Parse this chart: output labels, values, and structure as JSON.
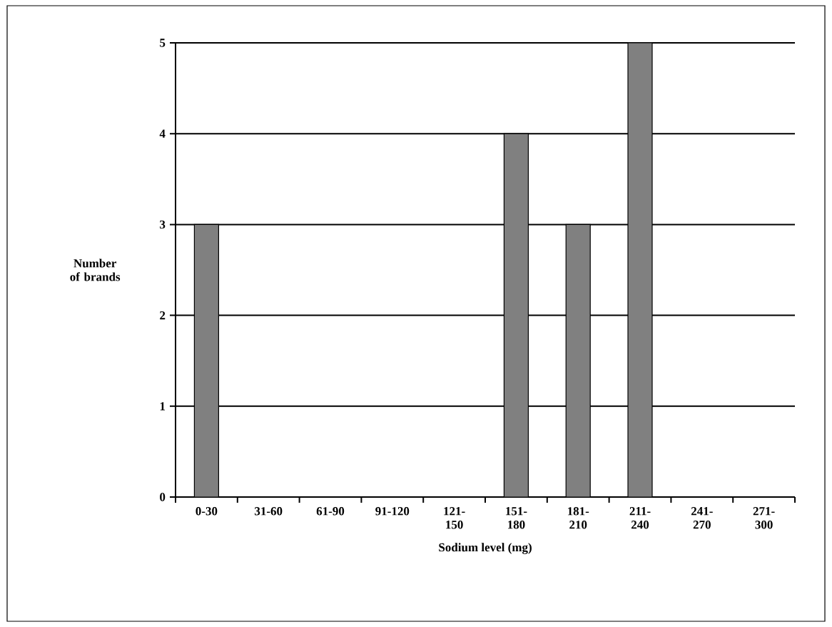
{
  "chart_data": {
    "type": "bar",
    "xlabel": "Sodium level (mg)",
    "ylabel": "Number of brands",
    "categories": [
      "0-30",
      "31-60",
      "61-90",
      "91-120",
      "121-150",
      "151-180",
      "181-210",
      "211-240",
      "241-270",
      "271-300"
    ],
    "values": [
      3,
      0,
      0,
      0,
      0,
      4,
      3,
      5,
      0,
      0
    ],
    "color": "#808080",
    "ylim": [
      0,
      5
    ],
    "yticks": [
      0,
      1,
      2,
      3,
      4,
      5
    ],
    "grid": "y"
  }
}
